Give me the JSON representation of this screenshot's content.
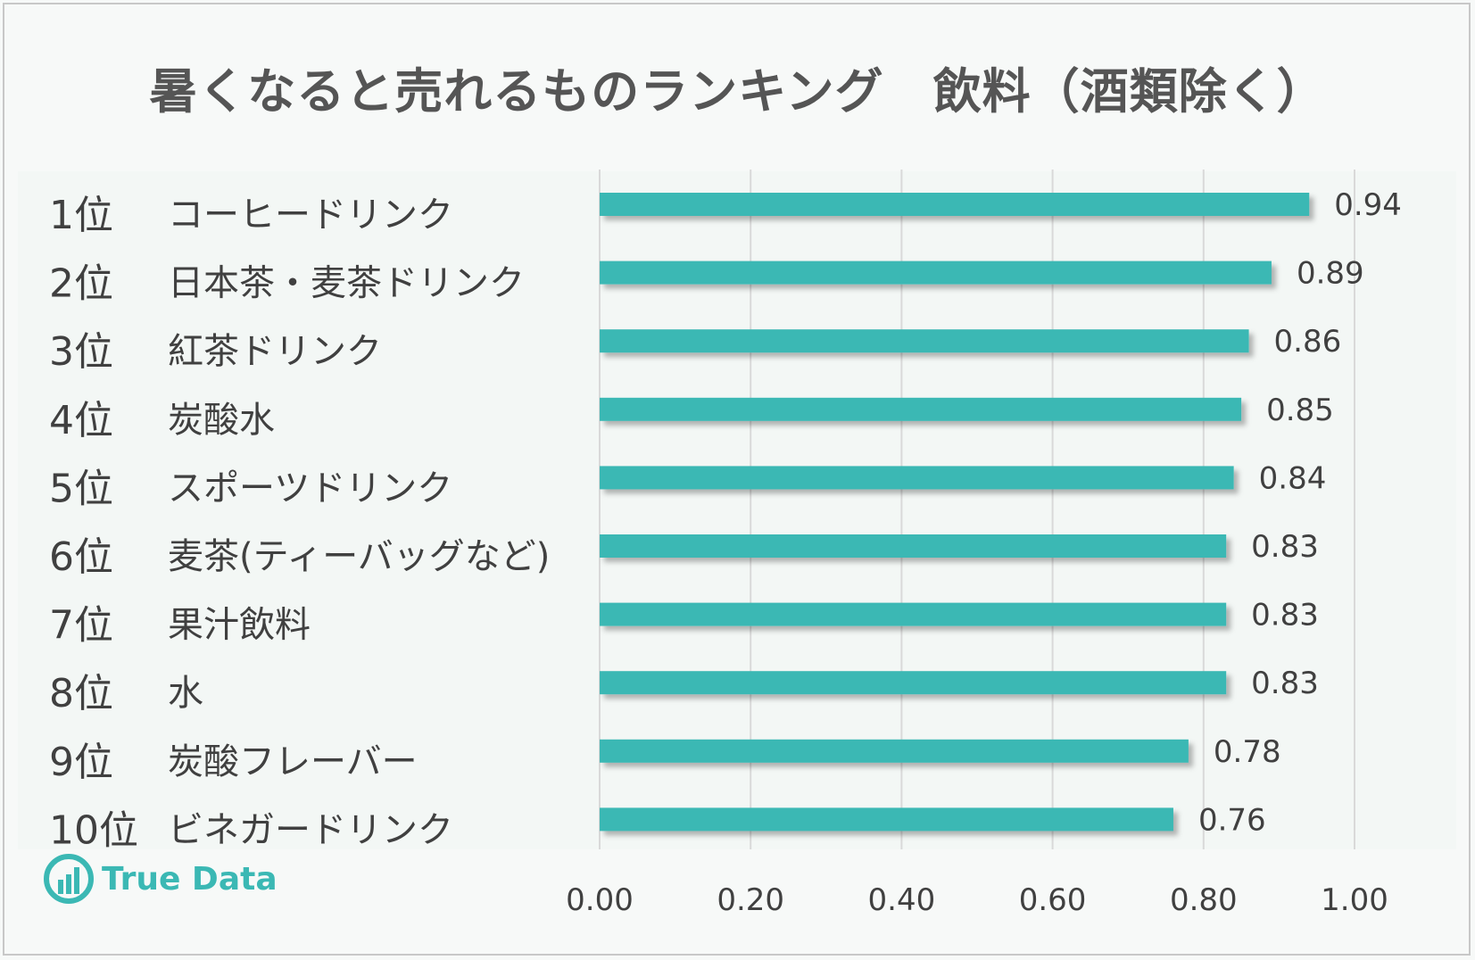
{
  "title": "暑くなると売れるものランキング　飲料（酒類除く）",
  "logo": {
    "text": "True Data",
    "icon": "true-data-logo-icon"
  },
  "colors": {
    "bar": "#3bb8b4",
    "grid": "#d9d9d9",
    "text": "#404040",
    "logo": "#3bb8b4"
  },
  "chart_data": {
    "type": "bar",
    "orientation": "horizontal",
    "title": "暑くなると売れるものランキング　飲料（酒類除く）",
    "ranks": [
      "1位",
      "2位",
      "3位",
      "4位",
      "5位",
      "6位",
      "7位",
      "8位",
      "9位",
      "10位"
    ],
    "categories": [
      "コーヒードリンク",
      "日本茶・麦茶ドリンク",
      "紅茶ドリンク",
      "炭酸水",
      "スポーツドリンク",
      "麦茶(ティーバッグなど)",
      "果汁飲料",
      "水",
      "炭酸フレーバー",
      "ビネガードリンク"
    ],
    "values": [
      0.94,
      0.89,
      0.86,
      0.85,
      0.84,
      0.83,
      0.83,
      0.83,
      0.78,
      0.76
    ],
    "value_labels": [
      "0.94",
      "0.89",
      "0.86",
      "0.85",
      "0.84",
      "0.83",
      "0.83",
      "0.83",
      "0.78",
      "0.76"
    ],
    "xlim": [
      0,
      1.0
    ],
    "xticks": [
      0,
      0.2,
      0.4,
      0.6,
      0.8,
      1.0
    ],
    "xtick_labels": [
      "0.00",
      "0.20",
      "0.40",
      "0.60",
      "0.80",
      "1.00"
    ],
    "grid": true,
    "legend": "none"
  }
}
